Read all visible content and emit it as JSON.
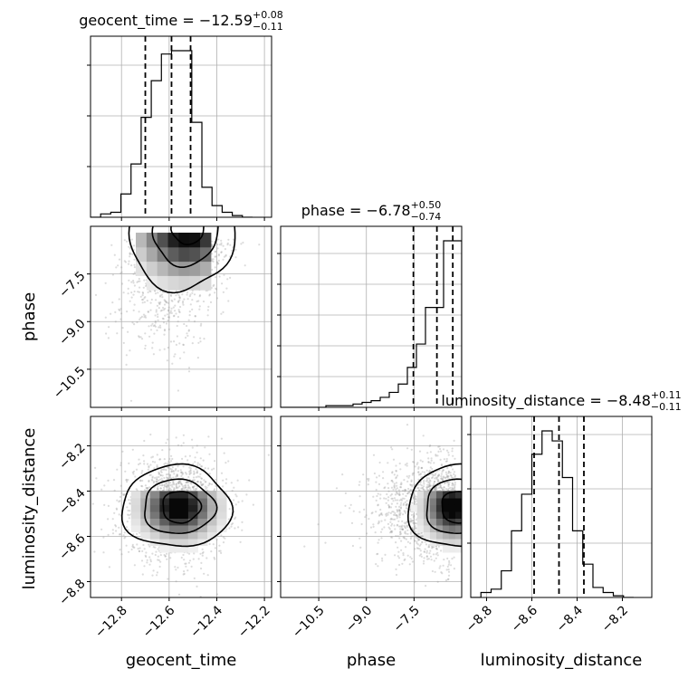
{
  "chart_data": [
    {
      "type": "histogram",
      "parameter": "geocent_time",
      "title": {
        "prefix": "geocent_time = ",
        "median": "−12.59",
        "upper": "+0.08",
        "lower": "−0.11"
      },
      "quantiles": [
        -12.7,
        -12.59,
        -12.51
      ],
      "bins": {
        "x_start": -12.93,
        "x_end": -12.25,
        "counts": [
          0,
          2,
          3,
          14,
          32,
          60,
          82,
          98,
          100,
          100,
          57,
          18,
          7,
          3,
          1,
          0
        ]
      },
      "xlim": [
        -12.93,
        -12.17
      ],
      "xticks": [
        "−12.8",
        "−12.6",
        "−12.4",
        "−12.2"
      ],
      "xtick_values": [
        -12.8,
        -12.6,
        -12.4,
        -12.2
      ],
      "xlabel": "geocent_time"
    },
    {
      "type": "scatter-density",
      "x_parameter": "geocent_time",
      "y_parameter": "phase",
      "xlim": [
        -12.93,
        -12.17
      ],
      "ylim": [
        -11.7,
        -6.0
      ],
      "yticks": [
        "−7.5",
        "−9.0",
        "−10.5"
      ],
      "ytick_values": [
        -7.5,
        -9.0,
        -10.5
      ],
      "ylabel": "phase"
    },
    {
      "type": "histogram",
      "parameter": "phase",
      "title": {
        "prefix": "phase = ",
        "median": "−6.78",
        "upper": "+0.50",
        "lower": "−0.74"
      },
      "quantiles": [
        -7.52,
        -6.78,
        -6.28
      ],
      "bins": {
        "x_start": -11.7,
        "x_end": -6.0,
        "counts": [
          0,
          0,
          0,
          0,
          0,
          1,
          1,
          1,
          2,
          3,
          4,
          6,
          9,
          14,
          24,
          38,
          60,
          60,
          100,
          100
        ]
      },
      "xlim": [
        -11.7,
        -6.0
      ],
      "xticks": [
        "−10.5",
        "−9.0",
        "−7.5"
      ],
      "xtick_values": [
        -10.5,
        -9.0,
        -7.5
      ],
      "xlabel": "phase"
    },
    {
      "type": "scatter-density",
      "x_parameter": "geocent_time",
      "y_parameter": "luminosity_distance",
      "xlim": [
        -12.93,
        -12.17
      ],
      "ylim": [
        -8.87,
        -8.07
      ],
      "yticks": [
        "−8.2",
        "−8.4",
        "−8.6",
        "−8.8"
      ],
      "ytick_values": [
        -8.2,
        -8.4,
        -8.6,
        -8.8
      ],
      "ylabel": "luminosity_distance"
    },
    {
      "type": "scatter-density",
      "x_parameter": "phase",
      "y_parameter": "luminosity_distance",
      "xlim": [
        -11.7,
        -6.0
      ],
      "ylim": [
        -8.87,
        -8.07
      ]
    },
    {
      "type": "histogram",
      "parameter": "luminosity_distance",
      "title": {
        "prefix": "luminosity_distance = ",
        "median": "−8.48",
        "upper": "+0.11",
        "lower": "−0.11"
      },
      "quantiles": [
        -8.59,
        -8.48,
        -8.37
      ],
      "bins": {
        "x_start": -8.87,
        "x_end": -8.15,
        "counts": [
          0,
          3,
          5,
          16,
          40,
          62,
          86,
          100,
          94,
          72,
          40,
          20,
          6,
          3,
          1,
          0
        ]
      },
      "xlim": [
        -8.87,
        -8.07
      ],
      "xticks": [
        "−8.8",
        "−8.6",
        "−8.4",
        "−8.2"
      ],
      "xtick_values": [
        -8.8,
        -8.6,
        -8.4,
        -8.2
      ],
      "xlabel": "luminosity_distance"
    }
  ]
}
